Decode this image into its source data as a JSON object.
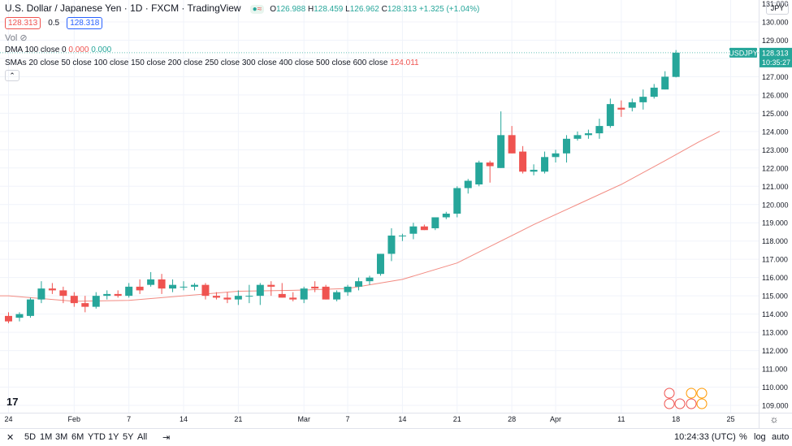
{
  "header": {
    "title": "U.S. Dollar / Japanese Yen · 1D · FXCM · TradingView",
    "ohlc": {
      "o_label": "O",
      "o": "126.988",
      "h_label": "H",
      "h": "128.459",
      "l_label": "L",
      "l": "126.962",
      "c_label": "C",
      "c": "128.313",
      "change": "+1.325 (+1.04%)"
    },
    "sell_price": "128.313",
    "spread": "0.5",
    "buy_price": "128.318"
  },
  "volume_label": "Vol",
  "indicators": {
    "dma_label": "DMA 100 close 0",
    "dma_val1": "0.000",
    "dma_val2": "0.000",
    "smas_label": "SMAs 20 close 50 close 100 close 150 close 200 close 250 close 300 close 400 close 500 close 600 close",
    "smas_val": "124.011"
  },
  "price_label": {
    "symbol": "USDJPY",
    "price": "128.313",
    "countdown": "10:35:27"
  },
  "currency": "JPY",
  "bottom": {
    "ranges": [
      "5D",
      "1M",
      "3M",
      "6M",
      "YTD",
      "1Y",
      "5Y",
      "All"
    ],
    "time": "10:24:33 (UTC)",
    "percent": "%",
    "log": "log",
    "auto": "auto"
  },
  "colors": {
    "up": "#26a69a",
    "down": "#ef5350",
    "sma": "#f28b82"
  },
  "chart_data": {
    "type": "candlestick",
    "y_ticks": [
      109,
      110,
      111,
      112,
      113,
      114,
      115,
      116,
      117,
      118,
      119,
      120,
      121,
      122,
      123,
      124,
      125,
      126,
      127,
      128,
      129,
      130
    ],
    "y_tick_labels": [
      "109.000",
      "110.000",
      "111.000",
      "112.000",
      "113.000",
      "114.000",
      "115.000",
      "116.000",
      "117.000",
      "118.000",
      "119.000",
      "120.000",
      "121.000",
      "122.000",
      "123.000",
      "124.000",
      "125.000",
      "126.000",
      "127.000",
      "128.000",
      "129.000",
      "130.000"
    ],
    "y_top_partial_label": "131.000",
    "ylim": [
      108.6,
      131.2
    ],
    "x_ticks": [
      {
        "label": "24",
        "index": 0
      },
      {
        "label": "Feb",
        "index": 6
      },
      {
        "label": "7",
        "index": 11
      },
      {
        "label": "14",
        "index": 16
      },
      {
        "label": "21",
        "index": 21
      },
      {
        "label": "Mar",
        "index": 27
      },
      {
        "label": "7",
        "index": 31
      },
      {
        "label": "14",
        "index": 36
      },
      {
        "label": "21",
        "index": 41
      },
      {
        "label": "28",
        "index": 46
      },
      {
        "label": "Apr",
        "index": 50
      },
      {
        "label": "11",
        "index": 56
      },
      {
        "label": "18",
        "index": 61
      },
      {
        "label": "25",
        "index": 66
      }
    ],
    "candles": [
      [
        113.9,
        114.1,
        113.5,
        113.6
      ],
      [
        113.8,
        114.1,
        113.6,
        114.0
      ],
      [
        113.9,
        114.9,
        113.8,
        114.8
      ],
      [
        114.8,
        115.8,
        114.6,
        115.4
      ],
      [
        115.4,
        115.7,
        115.1,
        115.3
      ],
      [
        115.3,
        115.5,
        114.6,
        115.0
      ],
      [
        115.0,
        115.2,
        114.4,
        114.6
      ],
      [
        114.6,
        115.0,
        114.1,
        114.4
      ],
      [
        114.4,
        115.2,
        114.3,
        115.0
      ],
      [
        115.0,
        115.3,
        114.8,
        115.1
      ],
      [
        115.1,
        115.3,
        114.9,
        115.0
      ],
      [
        115.0,
        115.7,
        114.9,
        115.5
      ],
      [
        115.5,
        115.9,
        115.1,
        115.3
      ],
      [
        115.6,
        116.3,
        115.5,
        115.9
      ],
      [
        115.9,
        116.2,
        115.1,
        115.4
      ],
      [
        115.4,
        115.9,
        115.2,
        115.6
      ],
      [
        115.5,
        115.8,
        115.3,
        115.5
      ],
      [
        115.5,
        115.7,
        115.3,
        115.6
      ],
      [
        115.6,
        115.7,
        114.8,
        115.0
      ],
      [
        115.0,
        115.2,
        114.8,
        114.9
      ],
      [
        114.9,
        115.2,
        114.6,
        114.8
      ],
      [
        114.8,
        115.3,
        114.5,
        115.0
      ],
      [
        115.0,
        115.6,
        114.6,
        115.0
      ],
      [
        115.0,
        115.7,
        114.5,
        115.6
      ],
      [
        115.6,
        115.8,
        115.0,
        115.5
      ],
      [
        115.1,
        115.7,
        114.9,
        114.9
      ],
      [
        114.9,
        115.2,
        114.7,
        114.8
      ],
      [
        114.8,
        115.5,
        114.6,
        115.4
      ],
      [
        115.5,
        115.8,
        115.2,
        115.4
      ],
      [
        115.5,
        115.6,
        114.8,
        114.8
      ],
      [
        114.8,
        115.3,
        114.7,
        115.2
      ],
      [
        115.2,
        115.6,
        115.0,
        115.5
      ],
      [
        115.5,
        116.0,
        115.3,
        115.8
      ],
      [
        115.8,
        116.1,
        115.6,
        116.0
      ],
      [
        116.2,
        117.3,
        116.1,
        117.3
      ],
      [
        117.3,
        118.7,
        116.9,
        118.3
      ],
      [
        118.3,
        118.4,
        118.0,
        118.3
      ],
      [
        118.4,
        119.0,
        118.1,
        118.8
      ],
      [
        118.8,
        118.9,
        118.6,
        118.6
      ],
      [
        118.7,
        119.3,
        118.6,
        119.3
      ],
      [
        119.3,
        119.6,
        119.2,
        119.5
      ],
      [
        119.5,
        121.0,
        119.3,
        120.9
      ],
      [
        120.9,
        121.4,
        120.6,
        121.3
      ],
      [
        121.1,
        122.4,
        121.0,
        122.3
      ],
      [
        122.3,
        122.4,
        121.2,
        122.1
      ],
      [
        122.0,
        125.1,
        122.0,
        123.8
      ],
      [
        123.8,
        124.3,
        122.8,
        122.8
      ],
      [
        122.9,
        123.2,
        121.7,
        121.8
      ],
      [
        121.8,
        122.2,
        121.6,
        121.9
      ],
      [
        121.8,
        122.9,
        121.7,
        122.6
      ],
      [
        122.6,
        123.0,
        122.3,
        122.8
      ],
      [
        122.8,
        123.8,
        122.3,
        123.6
      ],
      [
        123.6,
        124.0,
        123.5,
        123.8
      ],
      [
        123.8,
        124.1,
        123.6,
        123.9
      ],
      [
        123.9,
        124.7,
        123.6,
        124.3
      ],
      [
        124.3,
        125.8,
        124.2,
        125.5
      ],
      [
        125.3,
        125.7,
        124.8,
        125.2
      ],
      [
        125.3,
        125.8,
        125.1,
        125.6
      ],
      [
        125.6,
        126.3,
        125.2,
        125.9
      ],
      [
        125.9,
        126.6,
        125.8,
        126.4
      ],
      [
        126.3,
        127.3,
        126.3,
        127.0
      ],
      [
        126.988,
        128.459,
        126.962,
        128.313
      ]
    ],
    "sma": [
      [
        0,
        115.0
      ],
      [
        6,
        114.7
      ],
      [
        11,
        114.75
      ],
      [
        16,
        115.0
      ],
      [
        21,
        115.25
      ],
      [
        26,
        115.3
      ],
      [
        31,
        115.4
      ],
      [
        36,
        115.9
      ],
      [
        41,
        116.8
      ],
      [
        45,
        118.0
      ],
      [
        48,
        118.9
      ],
      [
        52,
        120.0
      ],
      [
        56,
        121.1
      ],
      [
        60,
        122.4
      ],
      [
        63,
        123.4
      ],
      [
        65,
        124.011
      ]
    ],
    "last_price": 128.313
  }
}
